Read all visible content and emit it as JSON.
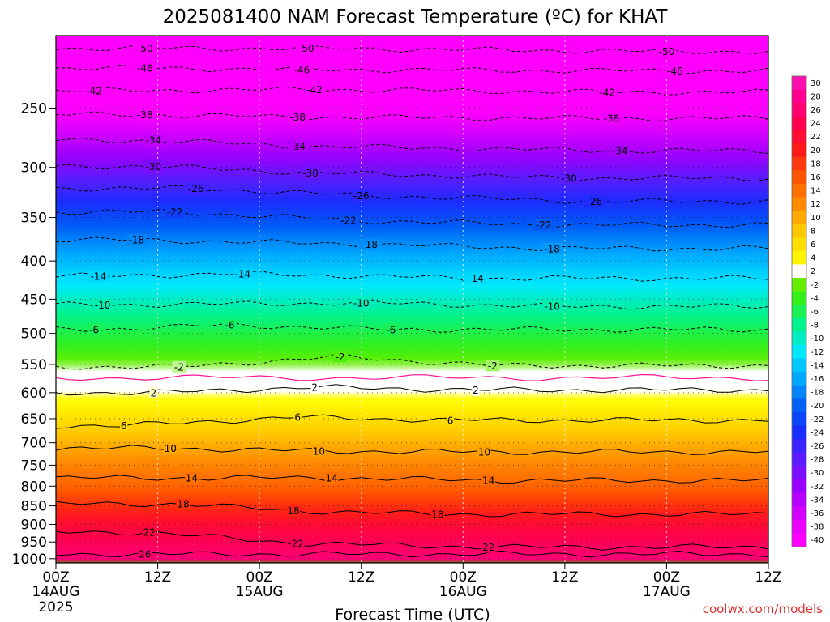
{
  "chart_data": {
    "type": "heatmap",
    "title": "2025081400 NAM Forecast Temperature (ºC) for KHAT",
    "xlabel": "Forecast Time (UTC)",
    "credit": "coolwx.com/models",
    "credit_color": "#e03030",
    "x_unit": "hours since 2025081400",
    "xlim": [
      0,
      84
    ],
    "x_ticks": [
      {
        "hour": 0,
        "label": "00Z",
        "date": "14AUG",
        "year": "2025"
      },
      {
        "hour": 12,
        "label": "12Z",
        "date": "",
        "year": ""
      },
      {
        "hour": 24,
        "label": "00Z",
        "date": "15AUG",
        "year": ""
      },
      {
        "hour": 36,
        "label": "12Z",
        "date": "",
        "year": ""
      },
      {
        "hour": 48,
        "label": "00Z",
        "date": "16AUG",
        "year": ""
      },
      {
        "hour": 60,
        "label": "12Z",
        "date": "",
        "year": ""
      },
      {
        "hour": 72,
        "label": "00Z",
        "date": "17AUG",
        "year": ""
      },
      {
        "hour": 84,
        "label": "12Z",
        "date": "",
        "year": ""
      }
    ],
    "y_unit": "hPa",
    "ylim": [
      1013,
      200
    ],
    "y_scale": "log-pressure",
    "y_ticks": [
      250,
      300,
      350,
      400,
      450,
      500,
      550,
      600,
      650,
      700,
      750,
      800,
      850,
      900,
      950,
      1000
    ],
    "grid": true,
    "surface_pressure": 1007,
    "surface_color": "#a0522d",
    "colorbar": {
      "levels": [
        30,
        28,
        26,
        24,
        22,
        20,
        18,
        16,
        14,
        12,
        10,
        8,
        6,
        4,
        2,
        -2,
        -4,
        -6,
        -8,
        -10,
        -12,
        -14,
        -16,
        -18,
        -20,
        -22,
        -24,
        -26,
        -28,
        -30,
        -32,
        -34,
        -36,
        -38,
        -40
      ],
      "colors": [
        {
          "t": -40,
          "c": "#ff00ff"
        },
        {
          "t": -36,
          "c": "#d400ff"
        },
        {
          "t": -32,
          "c": "#9b00ff"
        },
        {
          "t": -28,
          "c": "#5a1cff"
        },
        {
          "t": -24,
          "c": "#1a2dff"
        },
        {
          "t": -20,
          "c": "#005ff5"
        },
        {
          "t": -16,
          "c": "#00a8ff"
        },
        {
          "t": -12,
          "c": "#00e8ff"
        },
        {
          "t": -8,
          "c": "#00f28c"
        },
        {
          "t": -4,
          "c": "#33f01a"
        },
        {
          "t": -2,
          "c": "#66ee00"
        },
        {
          "t": -1,
          "c": "#ffffff"
        },
        {
          "t": 2,
          "c": "#ffffff"
        },
        {
          "t": 3,
          "c": "#ffff00"
        },
        {
          "t": 8,
          "c": "#ffc800"
        },
        {
          "t": 12,
          "c": "#ff8c00"
        },
        {
          "t": 16,
          "c": "#ff5500"
        },
        {
          "t": 20,
          "c": "#ff1a1a"
        },
        {
          "t": 24,
          "c": "#ff0050"
        },
        {
          "t": 28,
          "c": "#ff0090"
        },
        {
          "t": 30,
          "c": "#ff10b0"
        }
      ]
    },
    "contour_labels": [
      {
        "value": "-50",
        "hour": 10.5,
        "p": 208
      },
      {
        "value": "-50",
        "hour": 29.5,
        "p": 208
      },
      {
        "value": "-50",
        "hour": 72,
        "p": 210
      },
      {
        "value": "-46",
        "hour": 10.5,
        "p": 221
      },
      {
        "value": "-46",
        "hour": 29,
        "p": 222
      },
      {
        "value": "-46",
        "hour": 73,
        "p": 223
      },
      {
        "value": "-42",
        "hour": 4.5,
        "p": 237
      },
      {
        "value": "-42",
        "hour": 30.5,
        "p": 236
      },
      {
        "value": "-42",
        "hour": 65,
        "p": 238
      },
      {
        "value": "-38",
        "hour": 10.5,
        "p": 255
      },
      {
        "value": "-38",
        "hour": 28.5,
        "p": 257
      },
      {
        "value": "-38",
        "hour": 65.5,
        "p": 258
      },
      {
        "value": "-34",
        "hour": 11.5,
        "p": 276
      },
      {
        "value": "-34",
        "hour": 28.5,
        "p": 281
      },
      {
        "value": "-34",
        "hour": 66.5,
        "p": 285
      },
      {
        "value": "-30",
        "hour": 11.5,
        "p": 299
      },
      {
        "value": "-30",
        "hour": 30,
        "p": 305
      },
      {
        "value": "-30",
        "hour": 60.5,
        "p": 310
      },
      {
        "value": "-26",
        "hour": 16.5,
        "p": 320
      },
      {
        "value": "-26",
        "hour": 36,
        "p": 327
      },
      {
        "value": "-26",
        "hour": 63.5,
        "p": 333
      },
      {
        "value": "-22",
        "hour": 14,
        "p": 344
      },
      {
        "value": "-22",
        "hour": 34.5,
        "p": 353
      },
      {
        "value": "-22",
        "hour": 57.5,
        "p": 358
      },
      {
        "value": "-18",
        "hour": 9.5,
        "p": 375
      },
      {
        "value": "-18",
        "hour": 37,
        "p": 380
      },
      {
        "value": "-18",
        "hour": 58.5,
        "p": 385
      },
      {
        "value": "-14",
        "hour": 5,
        "p": 419
      },
      {
        "value": "-14",
        "hour": 22,
        "p": 416
      },
      {
        "value": "-14",
        "hour": 49.5,
        "p": 422
      },
      {
        "value": "-10",
        "hour": 5.5,
        "p": 458
      },
      {
        "value": "-10",
        "hour": 36,
        "p": 455
      },
      {
        "value": "-10",
        "hour": 58.5,
        "p": 460
      },
      {
        "value": "-6",
        "hour": 4.5,
        "p": 494
      },
      {
        "value": "-6",
        "hour": 20.5,
        "p": 487
      },
      {
        "value": "-6",
        "hour": 39.5,
        "p": 494
      },
      {
        "value": "-2",
        "hour": 14.5,
        "p": 554
      },
      {
        "value": "-2",
        "hour": 33.5,
        "p": 537
      },
      {
        "value": "-2",
        "hour": 51.5,
        "p": 552
      },
      {
        "value": "2",
        "hour": 11.5,
        "p": 600
      },
      {
        "value": "2",
        "hour": 30.5,
        "p": 590
      },
      {
        "value": "2",
        "hour": 49.5,
        "p": 595
      },
      {
        "value": "6",
        "hour": 8,
        "p": 664
      },
      {
        "value": "6",
        "hour": 28.5,
        "p": 647
      },
      {
        "value": "6",
        "hour": 46.5,
        "p": 653
      },
      {
        "value": "10",
        "hour": 13.5,
        "p": 712
      },
      {
        "value": "10",
        "hour": 31,
        "p": 718
      },
      {
        "value": "10",
        "hour": 50.5,
        "p": 720
      },
      {
        "value": "14",
        "hour": 16,
        "p": 780
      },
      {
        "value": "14",
        "hour": 32.5,
        "p": 780
      },
      {
        "value": "14",
        "hour": 51,
        "p": 786
      },
      {
        "value": "18",
        "hour": 15,
        "p": 845
      },
      {
        "value": "18",
        "hour": 28,
        "p": 863
      },
      {
        "value": "18",
        "hour": 45,
        "p": 872
      },
      {
        "value": "22",
        "hour": 11,
        "p": 922
      },
      {
        "value": "22",
        "hour": 28.5,
        "p": 954
      },
      {
        "value": "22",
        "hour": 51,
        "p": 965
      },
      {
        "value": "26",
        "hour": 10.5,
        "p": 986
      }
    ]
  },
  "series_profile": [
    {
      "p": 200,
      "t": -52.5
    },
    {
      "p": 230,
      "t": -45.5
    },
    {
      "p": 250,
      "t": -40.5
    },
    {
      "p": 275,
      "t": -35.0
    },
    {
      "p": 300,
      "t": -30.0
    },
    {
      "p": 325,
      "t": -25.5
    },
    {
      "p": 350,
      "t": -21.5
    },
    {
      "p": 375,
      "t": -18.0
    },
    {
      "p": 400,
      "t": -15.0
    },
    {
      "p": 450,
      "t": -10.0
    },
    {
      "p": 500,
      "t": -5.5
    },
    {
      "p": 550,
      "t": -1.8
    },
    {
      "p": 575,
      "t": 0.5
    },
    {
      "p": 600,
      "t": 2.2
    },
    {
      "p": 650,
      "t": 5.8
    },
    {
      "p": 700,
      "t": 9.5
    },
    {
      "p": 750,
      "t": 12.5
    },
    {
      "p": 800,
      "t": 15.0
    },
    {
      "p": 850,
      "t": 18.5
    },
    {
      "p": 900,
      "t": 22.0
    },
    {
      "p": 950,
      "t": 24.5
    },
    {
      "p": 1013,
      "t": 27.0
    }
  ]
}
